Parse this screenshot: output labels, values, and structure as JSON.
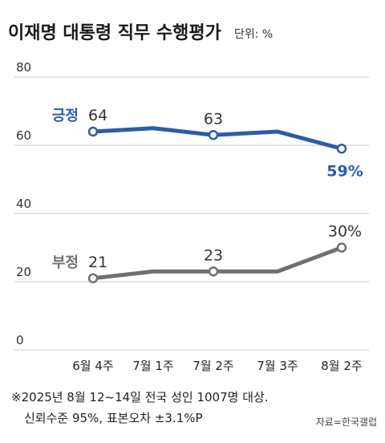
{
  "header": {
    "title": "이재명 대통령 직무 수행평가",
    "unit": "단위: %"
  },
  "chart_data": {
    "type": "line",
    "categories": [
      "6월 4주",
      "7월 1주",
      "7월 2주",
      "7월 3주",
      "8월 2주"
    ],
    "ylim": [
      0,
      80
    ],
    "yticks": [
      0,
      20,
      40,
      60,
      80
    ],
    "grid": true,
    "series": [
      {
        "name": "긍정",
        "values": [
          64,
          65,
          63,
          64,
          59
        ],
        "labels": [
          "64",
          "",
          "63",
          "",
          "59%"
        ],
        "color": "#2a5ca8"
      },
      {
        "name": "부정",
        "values": [
          21,
          23,
          23,
          23,
          30
        ],
        "labels": [
          "21",
          "",
          "23",
          "",
          "30%"
        ],
        "color": "#707070"
      }
    ]
  },
  "footer": {
    "note_line1": "※2025년 8월 12~14일 전국 성인 1007명 대상.",
    "note_line2": "신뢰수준 95%, 표본오차 ±3.1%P",
    "source": "자료=한국갤럽"
  }
}
